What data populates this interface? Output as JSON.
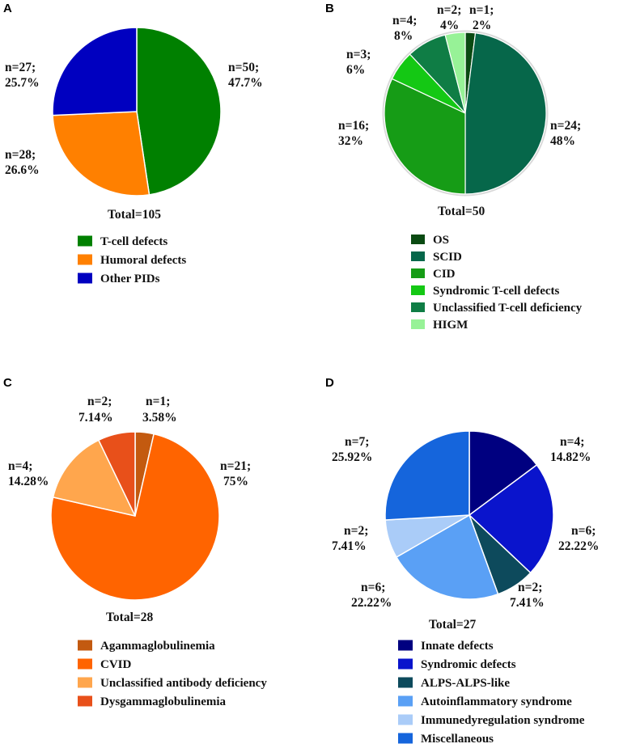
{
  "chart_data": [
    {
      "panel": "A",
      "type": "pie",
      "total_label": "Total=105",
      "slices": [
        {
          "name": "T-cell defects",
          "n": 50,
          "pct": 47.7,
          "color": "#008000",
          "label1": "n=50;",
          "label2": "47.7%"
        },
        {
          "name": "Humoral defects",
          "n": 28,
          "pct": 26.6,
          "color": "#FF8000",
          "label1": "n=28;",
          "label2": "26.6%"
        },
        {
          "name": "Other PIDs",
          "n": 27,
          "pct": 25.7,
          "color": "#0000C0",
          "label1": "n=27;",
          "label2": "25.7%"
        }
      ]
    },
    {
      "panel": "B",
      "type": "pie",
      "total_label": "Total=50",
      "slices": [
        {
          "name": "OS",
          "n": 1,
          "pct": 2,
          "color": "#0A4A12",
          "label1": "n=1;",
          "label2": "2%"
        },
        {
          "name": "SCID",
          "n": 24,
          "pct": 48,
          "color": "#06674A",
          "label1": "n=24;",
          "label2": "48%"
        },
        {
          "name": "CID",
          "n": 16,
          "pct": 32,
          "color": "#169C16",
          "label1": "n=16;",
          "label2": "32%"
        },
        {
          "name": "Syndromic T-cell defects",
          "n": 3,
          "pct": 6,
          "color": "#14C814",
          "label1": "n=3;",
          "label2": "6%"
        },
        {
          "name": "Unclassified T-cell deficiency",
          "n": 4,
          "pct": 8,
          "color": "#0F7D45",
          "label1": "n=4;",
          "label2": "8%"
        },
        {
          "name": "HIGM",
          "n": 2,
          "pct": 4,
          "color": "#97F297",
          "label1": "n=2;",
          "label2": "4%"
        }
      ]
    },
    {
      "panel": "C",
      "type": "pie",
      "total_label": "Total=28",
      "slices": [
        {
          "name": "Agammaglobulinemia",
          "n": 1,
          "pct": 3.58,
          "color": "#C35A10",
          "label1": "n=1;",
          "label2": "3.58%"
        },
        {
          "name": "CVID",
          "n": 21,
          "pct": 75,
          "color": "#FF6400",
          "label1": "n=21;",
          "label2": "75%"
        },
        {
          "name": "Unclassified antibody deficiency",
          "n": 4,
          "pct": 14.28,
          "color": "#FFA64D",
          "label1": "n=4;",
          "label2": "14.28%"
        },
        {
          "name": "Dysgammaglobulinemia",
          "n": 2,
          "pct": 7.14,
          "color": "#E8501A",
          "label1": "n=2;",
          "label2": "7.14%"
        }
      ]
    },
    {
      "panel": "D",
      "type": "pie",
      "total_label": "Total=27",
      "slices": [
        {
          "name": "Innate defects",
          "n": 4,
          "pct": 14.82,
          "color": "#000080",
          "label1": "n=4;",
          "label2": "14.82%"
        },
        {
          "name": "Syndromic defects",
          "n": 6,
          "pct": 22.22,
          "color": "#0A14CC",
          "label1": "n=6;",
          "label2": "22.22%"
        },
        {
          "name": "ALPS-ALPS-like",
          "n": 2,
          "pct": 7.41,
          "color": "#0D4A5C",
          "label1": "n=2;",
          "label2": "7.41%"
        },
        {
          "name": "Autoinflammatory syndrome",
          "n": 6,
          "pct": 22.22,
          "color": "#5AA0F5",
          "label1": "n=6;",
          "label2": "22.22%"
        },
        {
          "name": "Immunedyregulation syndrome",
          "n": 2,
          "pct": 7.41,
          "color": "#AACCF8",
          "label1": "n=2;",
          "label2": "7.41%"
        },
        {
          "name": "Miscellaneous",
          "n": 7,
          "pct": 25.92,
          "color": "#1565DC",
          "label1": "n=7;",
          "label2": "25.92%"
        }
      ]
    }
  ]
}
